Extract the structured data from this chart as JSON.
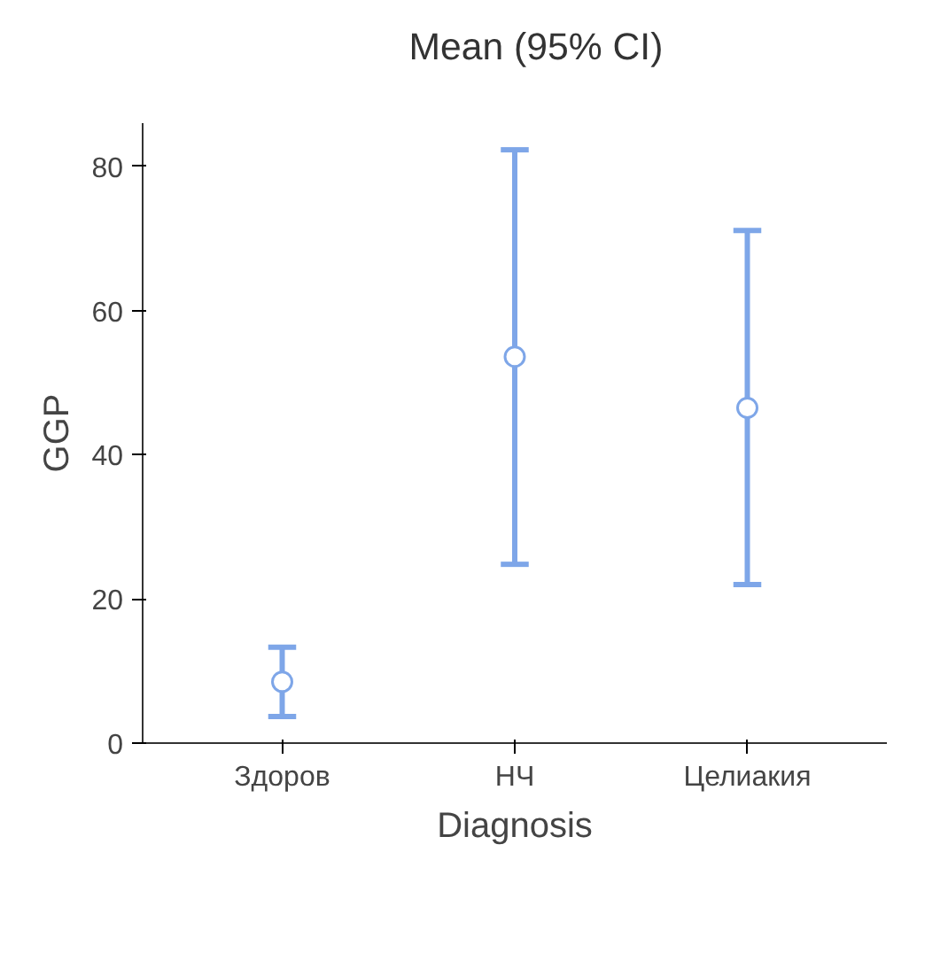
{
  "chart_data": {
    "type": "scatter",
    "xlabel": "Diagnosis",
    "ylabel": "GGP",
    "categories": [
      "Здоров",
      "НЧ",
      "Целиакия"
    ],
    "series": [
      {
        "name": "Mean (95% CI)",
        "color": "#7ea6e8",
        "values": [
          8.5,
          53.6,
          46.5
        ],
        "errors": [
          [
            3.7,
            13.3
          ],
          [
            24.8,
            82.3
          ],
          [
            22.0,
            71.1
          ]
        ]
      }
    ],
    "ylim": [
      0,
      86
    ],
    "yticks": [
      0,
      20,
      40,
      60,
      80
    ],
    "grid": false,
    "legend": "top",
    "marker": "circle"
  }
}
